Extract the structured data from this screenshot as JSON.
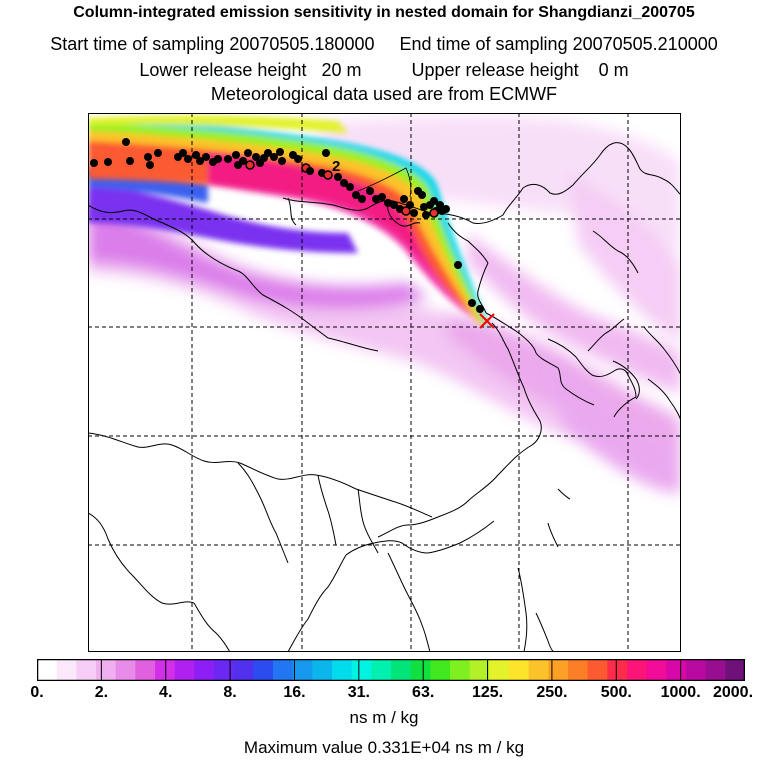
{
  "header": {
    "title": "Column-integrated emission sensitivity in nested domain for Shangdianzi_200705",
    "start_label": "Start time of sampling 20070505.180000",
    "end_label": "End time of sampling 20070505.210000",
    "lower_label": "Lower release height   20 m",
    "upper_label": "Upper release height    0 m",
    "met_label": "Meteorological data used are from ECMWF"
  },
  "map": {
    "plume_marker": "2",
    "release_site_icon": "red-x-icon"
  },
  "colorbar": {
    "tick_labels": [
      "0.",
      "2.",
      "4.",
      "8.",
      "16.",
      "31.",
      "63.",
      "125.",
      "250.",
      "500.",
      "1000.",
      "2000."
    ],
    "unit_label": "ns m / kg",
    "max_label": "Maximum value  0.331E+04 ns m / kg",
    "colors": [
      "#ffffff",
      "#fbe8fb",
      "#f6cdf6",
      "#f0b0f0",
      "#e98ce9",
      "#e060e0",
      "#d22fe8",
      "#b020f0",
      "#8d1ef6",
      "#6a28f2",
      "#5130ee",
      "#2d4cf0",
      "#2276f2",
      "#1698ee",
      "#0ab6ec",
      "#00dcec",
      "#00f2e2",
      "#00f0b0",
      "#00e47a",
      "#10e040",
      "#40e820",
      "#7ef020",
      "#b4f028",
      "#e4f22c",
      "#fce42a",
      "#fcc22a",
      "#fca026",
      "#fc7e26",
      "#fc5a30",
      "#fc2c4a",
      "#fc1478",
      "#f00c98",
      "#d808a8",
      "#b80aa0",
      "#980e90",
      "#70107a"
    ]
  }
}
